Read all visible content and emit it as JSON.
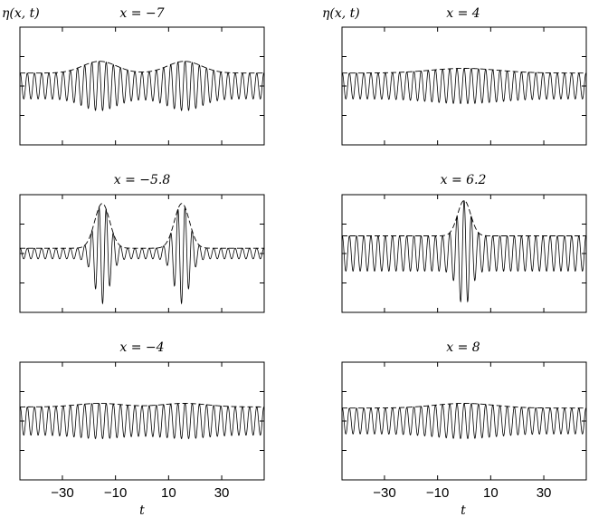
{
  "figure": {
    "ylabel": "η(x, t)",
    "xlabel": "t"
  },
  "chart_data": [
    {
      "type": "line",
      "title": "x = −7",
      "xlim": [
        -46,
        46
      ],
      "xticks": [
        -30,
        -10,
        10,
        30
      ],
      "ylim": [
        -1,
        1
      ],
      "carrier_period": 2.7,
      "base_amplitude": 0.22,
      "peaks": [
        {
          "center": -16,
          "amplitude": 0.42,
          "width": 9
        },
        {
          "center": 16,
          "amplitude": 0.42,
          "width": 9
        }
      ]
    },
    {
      "type": "line",
      "title": "x = 4",
      "xlim": [
        -46,
        46
      ],
      "xticks": [
        -30,
        -10,
        10,
        30
      ],
      "ylim": [
        -1,
        1
      ],
      "carrier_period": 2.7,
      "base_amplitude": 0.22,
      "peaks": [
        {
          "center": 0,
          "amplitude": 0.3,
          "width": 18
        }
      ]
    },
    {
      "type": "line",
      "title": "x = −5.8",
      "xlim": [
        -46,
        46
      ],
      "xticks": [
        -30,
        -10,
        10,
        30
      ],
      "ylim": [
        -1,
        1
      ],
      "carrier_period": 2.7,
      "base_amplitude": 0.09,
      "peaks": [
        {
          "center": -15,
          "amplitude": 0.85,
          "width": 4
        },
        {
          "center": 15,
          "amplitude": 0.85,
          "width": 4
        }
      ]
    },
    {
      "type": "line",
      "title": "x = 6.2",
      "xlim": [
        -46,
        46
      ],
      "xticks": [
        -30,
        -10,
        10,
        30
      ],
      "ylim": [
        -1,
        1
      ],
      "carrier_period": 2.7,
      "base_amplitude": 0.3,
      "peaks": [
        {
          "center": 0,
          "amplitude": 0.9,
          "width": 3.5
        }
      ]
    },
    {
      "type": "line",
      "title": "x = −4",
      "xlim": [
        -46,
        46
      ],
      "xticks": [
        -30,
        -10,
        10,
        30
      ],
      "ylim": [
        -1,
        1
      ],
      "carrier_period": 2.7,
      "base_amplitude": 0.24,
      "peaks": [
        {
          "center": -16,
          "amplitude": 0.3,
          "width": 12
        },
        {
          "center": 16,
          "amplitude": 0.3,
          "width": 12
        }
      ]
    },
    {
      "type": "line",
      "title": "x = 8",
      "xlim": [
        -46,
        46
      ],
      "xticks": [
        -30,
        -10,
        10,
        30
      ],
      "ylim": [
        -1,
        1
      ],
      "carrier_period": 2.7,
      "base_amplitude": 0.22,
      "peaks": [
        {
          "center": 0,
          "amplitude": 0.3,
          "width": 16
        }
      ]
    }
  ]
}
